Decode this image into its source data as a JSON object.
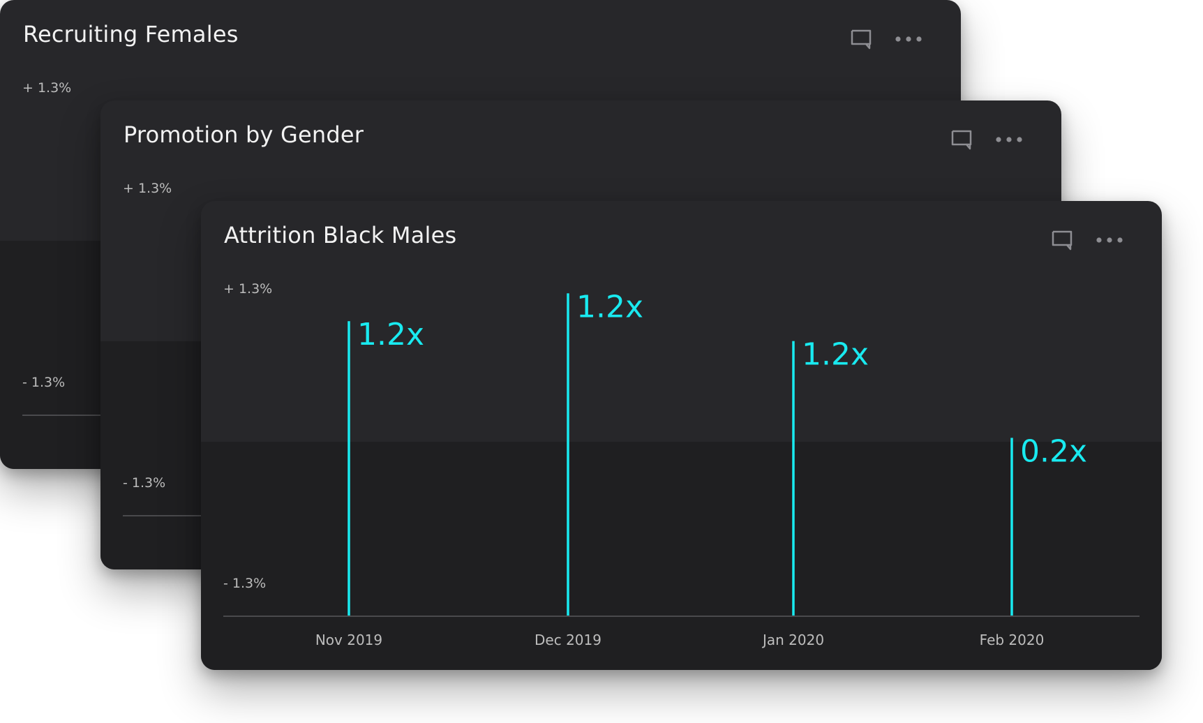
{
  "cards": [
    {
      "title": "Recruiting Females",
      "y_max_label": "+ 1.3%",
      "y_min_label": "- 1.3%"
    },
    {
      "title": "Promotion by Gender",
      "y_max_label": "+ 1.3%",
      "y_min_label": "- 1.3%"
    },
    {
      "title": "Attrition Black Males",
      "y_max_label": "+ 1.3%",
      "y_min_label": "- 1.3%"
    }
  ],
  "icons": {
    "comment": "comment-icon",
    "more": "more-icon"
  },
  "colors": {
    "accent": "#19eaf0",
    "card_bg": "#27272a",
    "card_bg_lower": "#1f1f21",
    "text": "#f2f2f2",
    "muted": "#bdbdbd"
  },
  "chart_data": {
    "type": "bar",
    "title": "Attrition Black Males",
    "categories": [
      "Nov 2019",
      "Dec 2019",
      "Jan 2020",
      "Feb 2020"
    ],
    "values": [
      0.92,
      1.13,
      0.77,
      0.04
    ],
    "data_labels": [
      "1.2x",
      "1.2x",
      "1.2x",
      "0.2x"
    ],
    "ylim": [
      -1.3,
      1.3
    ],
    "y_tick_labels": [
      "+ 1.3%",
      "- 1.3%"
    ],
    "xlabel": "",
    "ylabel": "",
    "grid": false,
    "legend": "none"
  }
}
